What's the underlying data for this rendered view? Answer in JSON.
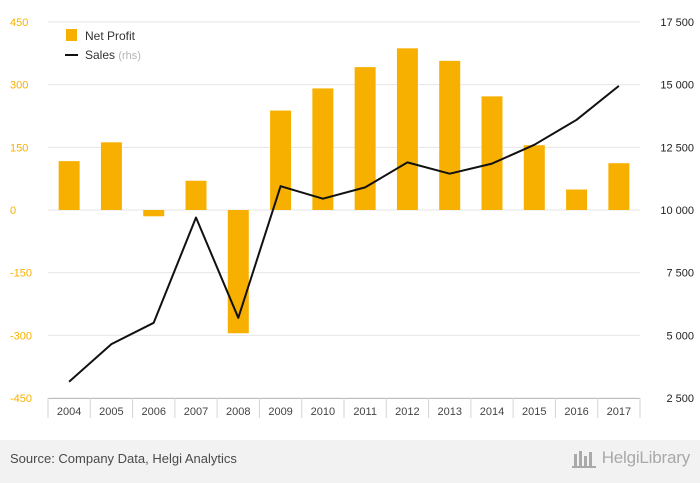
{
  "chart_data": {
    "type": "bar+line",
    "categories": [
      "2004",
      "2005",
      "2006",
      "2007",
      "2008",
      "2009",
      "2010",
      "2011",
      "2012",
      "2013",
      "2014",
      "2015",
      "2016",
      "2017"
    ],
    "series": [
      {
        "name": "Net Profit",
        "type": "bar",
        "axis": "left",
        "values": [
          117,
          162,
          -15,
          70,
          -295,
          238,
          291,
          342,
          387,
          357,
          272,
          155,
          49,
          112
        ]
      },
      {
        "name": "Sales",
        "name_suffix": "(rhs)",
        "type": "line",
        "axis": "right",
        "values": [
          3150,
          4650,
          5500,
          9700,
          5700,
          10950,
          10450,
          10900,
          11900,
          11450,
          11850,
          12600,
          13600,
          14950
        ]
      }
    ],
    "left_axis": {
      "min": -450,
      "max": 450,
      "ticks": [
        450,
        300,
        150,
        0,
        -150,
        -300,
        -450
      ],
      "tick_labels": [
        "450",
        "300",
        "150",
        "0",
        "-150",
        "-300",
        "-450"
      ]
    },
    "right_axis": {
      "min": 2500,
      "max": 17500,
      "ticks": [
        17500,
        15000,
        12500,
        10000,
        7500,
        5000,
        2500
      ],
      "tick_labels": [
        "17 500",
        "15 000",
        "12 500",
        "10 000",
        "7 500",
        "5 000",
        "2 500"
      ]
    },
    "colors": {
      "bar": "#f8b000",
      "line": "#111111",
      "left_tick": "#f8b000",
      "right_tick": "#222222",
      "grid": "#e6e6e6"
    },
    "grid": true,
    "legend_placement": "top-left"
  },
  "footer": {
    "source": "Source: Company Data, Helgi Analytics",
    "brand": "HelgiLibrary",
    "brand_icon": "library-icon"
  }
}
